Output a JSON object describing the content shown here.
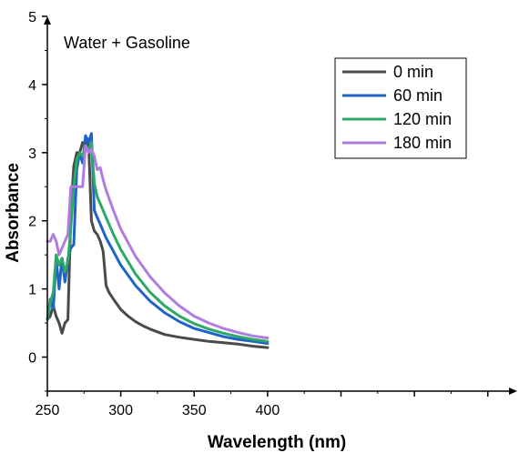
{
  "chart_data": {
    "type": "line",
    "title": "",
    "annotation": "Water + Gasoline",
    "xlabel": "Wavelength (nm)",
    "ylabel": "Absorbance",
    "xlim": [
      250,
      570
    ],
    "ylim": [
      -0.5,
      5
    ],
    "xticks": [
      250,
      300,
      350,
      400
    ],
    "yticks": [
      0,
      1,
      2,
      3,
      4,
      5
    ],
    "legend_position": "top-right",
    "grid": false,
    "series": [
      {
        "name": "0 min",
        "color": "#4a4a4a",
        "x": [
          250,
          252,
          254,
          256,
          258,
          260,
          262,
          264,
          266,
          268,
          270,
          272,
          274,
          276,
          278,
          280,
          282,
          284,
          286,
          288,
          290,
          292,
          295,
          300,
          305,
          310,
          315,
          320,
          325,
          330,
          340,
          350,
          360,
          370,
          380,
          390,
          400
        ],
        "y": [
          0.55,
          0.6,
          0.75,
          0.6,
          0.5,
          0.35,
          0.5,
          0.55,
          2.1,
          2.8,
          3.0,
          3.0,
          3.15,
          3.1,
          3.2,
          2.0,
          1.85,
          1.8,
          1.7,
          1.55,
          1.05,
          0.95,
          0.85,
          0.7,
          0.6,
          0.52,
          0.46,
          0.41,
          0.37,
          0.33,
          0.29,
          0.26,
          0.23,
          0.21,
          0.19,
          0.16,
          0.14
        ]
      },
      {
        "name": "60 min",
        "color": "#1f63c9",
        "x": [
          250,
          252,
          254,
          256,
          258,
          260,
          262,
          264,
          266,
          268,
          270,
          272,
          274,
          276,
          278,
          280,
          282,
          284,
          286,
          288,
          290,
          295,
          300,
          310,
          320,
          330,
          340,
          350,
          360,
          370,
          380,
          390,
          400
        ],
        "y": [
          0.55,
          0.85,
          0.7,
          1.45,
          1.0,
          1.45,
          1.1,
          1.45,
          1.6,
          1.65,
          2.75,
          3.0,
          2.85,
          3.25,
          3.15,
          3.28,
          2.15,
          2.05,
          1.95,
          1.85,
          1.75,
          1.55,
          1.35,
          1.05,
          0.82,
          0.65,
          0.52,
          0.42,
          0.36,
          0.3,
          0.26,
          0.23,
          0.2
        ]
      },
      {
        "name": "120 min",
        "color": "#2ea866",
        "x": [
          250,
          252,
          254,
          256,
          258,
          260,
          262,
          264,
          266,
          268,
          270,
          272,
          274,
          276,
          278,
          280,
          282,
          284,
          286,
          288,
          290,
          295,
          300,
          310,
          320,
          330,
          340,
          350,
          360,
          370,
          380,
          390,
          400
        ],
        "y": [
          0.55,
          0.8,
          0.95,
          1.5,
          1.35,
          1.45,
          1.25,
          1.4,
          1.9,
          2.5,
          2.9,
          3.0,
          2.95,
          3.1,
          3.05,
          3.15,
          2.55,
          2.35,
          2.25,
          2.15,
          2.05,
          1.8,
          1.58,
          1.22,
          0.95,
          0.75,
          0.6,
          0.49,
          0.41,
          0.35,
          0.3,
          0.26,
          0.23
        ]
      },
      {
        "name": "180 min",
        "color": "#b07ce0",
        "x": [
          250,
          252,
          254,
          256,
          258,
          260,
          262,
          264,
          266,
          268,
          270,
          272,
          274,
          276,
          278,
          280,
          282,
          284,
          286,
          288,
          290,
          295,
          300,
          310,
          320,
          330,
          340,
          350,
          360,
          370,
          380,
          390,
          400
        ],
        "y": [
          1.7,
          1.7,
          1.8,
          1.7,
          1.5,
          1.6,
          1.7,
          1.8,
          2.5,
          2.5,
          2.5,
          2.5,
          2.5,
          3.1,
          3.0,
          3.05,
          2.95,
          2.75,
          2.78,
          2.6,
          2.45,
          2.15,
          1.88,
          1.48,
          1.18,
          0.94,
          0.75,
          0.6,
          0.5,
          0.42,
          0.36,
          0.31,
          0.28
        ]
      }
    ]
  }
}
